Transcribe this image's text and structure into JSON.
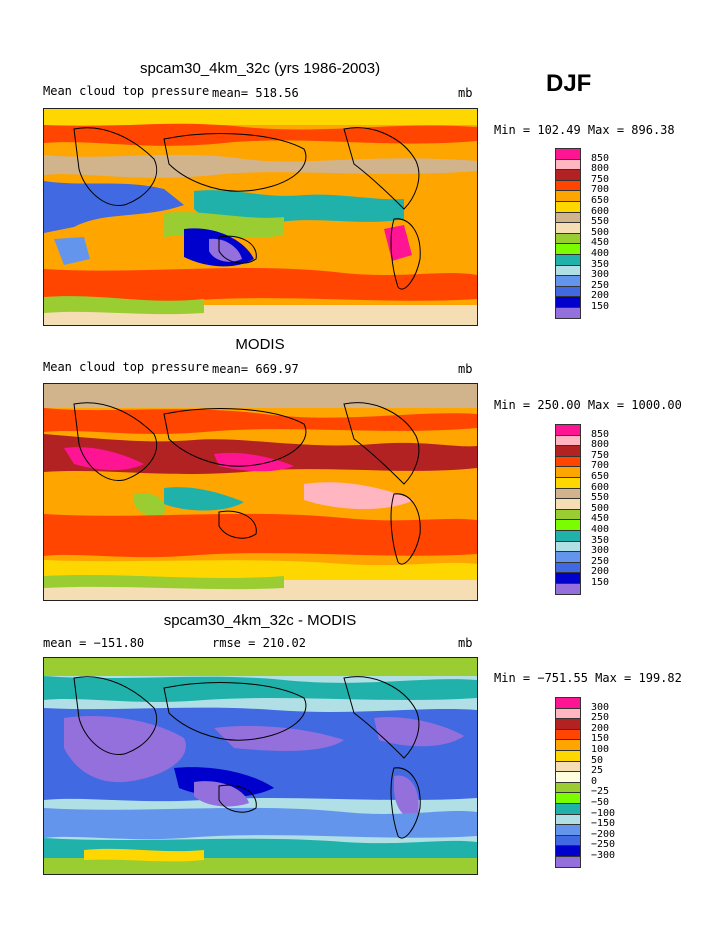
{
  "season": "DJF",
  "panels": [
    {
      "title": "spcam30_4km_32c (yrs 1986-2003)",
      "subtitle_left": "Mean cloud top pressure",
      "subtitle_mid": "mean= 518.56",
      "units": "mb",
      "minmax": "Min = 102.49 Max = 896.38",
      "colorbar": {
        "levels": [
          "850",
          "800",
          "750",
          "700",
          "650",
          "600",
          "550",
          "500",
          "450",
          "400",
          "350",
          "300",
          "250",
          "200",
          "150"
        ],
        "colors": [
          "#ff1493",
          "#ffb6c1",
          "#b22222",
          "#ff4500",
          "#ffa500",
          "#ffd700",
          "#d2b48c",
          "#f5deb3",
          "#9acd32",
          "#7cfc00",
          "#20b2aa",
          "#b0e0e6",
          "#6495ed",
          "#4169e1",
          "#0000cd",
          "#9370db"
        ]
      }
    },
    {
      "title": "MODIS",
      "subtitle_left": "Mean cloud top pressure",
      "subtitle_mid": "mean= 669.97",
      "units": "mb",
      "minmax": "Min = 250.00 Max = 1000.00",
      "colorbar": {
        "levels": [
          "850",
          "800",
          "750",
          "700",
          "650",
          "600",
          "550",
          "500",
          "450",
          "400",
          "350",
          "300",
          "250",
          "200",
          "150"
        ],
        "colors": [
          "#ff1493",
          "#ffb6c1",
          "#b22222",
          "#ff4500",
          "#ffa500",
          "#ffd700",
          "#d2b48c",
          "#f5deb3",
          "#9acd32",
          "#7cfc00",
          "#20b2aa",
          "#b0e0e6",
          "#6495ed",
          "#4169e1",
          "#0000cd",
          "#9370db"
        ]
      }
    },
    {
      "title": "spcam30_4km_32c - MODIS",
      "subtitle_left": "mean = −151.80",
      "subtitle_mid": "rmse = 210.02",
      "units": "mb",
      "minmax": "Min = −751.55 Max = 199.82",
      "colorbar": {
        "levels": [
          "300",
          "250",
          "200",
          "150",
          "100",
          "50",
          "25",
          "0",
          "−25",
          "−50",
          "−100",
          "−150",
          "−200",
          "−250",
          "−300"
        ],
        "colors": [
          "#ff1493",
          "#ffb6c1",
          "#b22222",
          "#ff4500",
          "#ffa500",
          "#ffd700",
          "#f5deb3",
          "#ffffe0",
          "#9acd32",
          "#7cfc00",
          "#20b2aa",
          "#b0e0e6",
          "#6495ed",
          "#4169e1",
          "#0000cd",
          "#9370db"
        ]
      }
    }
  ]
}
